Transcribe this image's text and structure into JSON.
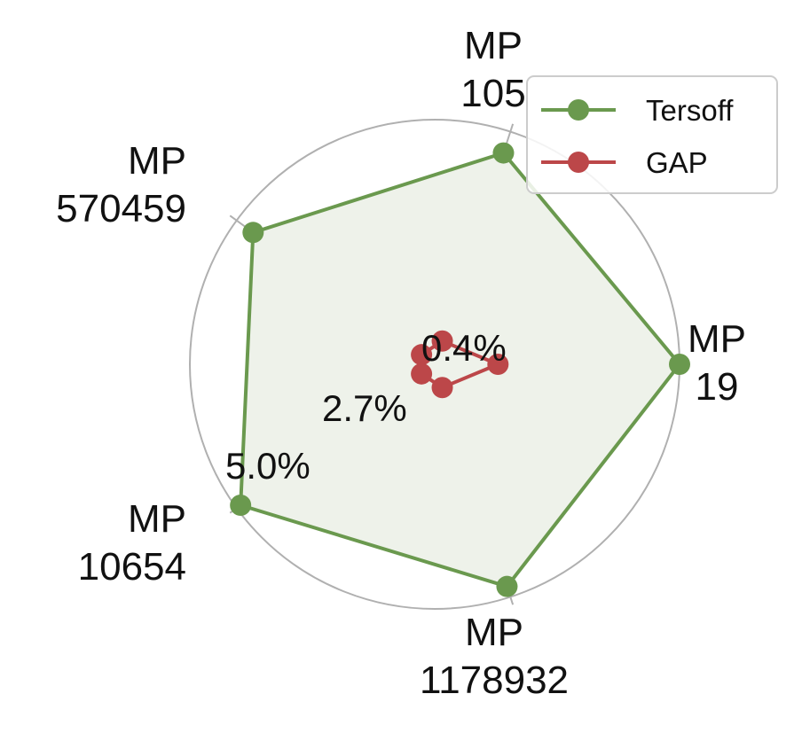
{
  "chart_data": {
    "type": "radar",
    "categories": [
      [
        "MP",
        "19"
      ],
      [
        "MP",
        "105"
      ],
      [
        "MP",
        "570459"
      ],
      [
        "MP",
        "10654"
      ],
      [
        "MP",
        "1178932"
      ]
    ],
    "radial_ticks": [
      {
        "value": 0.4,
        "label": "0.4%"
      },
      {
        "value": 2.7,
        "label": "2.7%"
      },
      {
        "value": 5.0,
        "label": "5.0%"
      }
    ],
    "rlim": [
      -1.0,
      5.0
    ],
    "grid": true,
    "legend": {
      "placement": "top-right"
    },
    "series": [
      {
        "name": "Tersoff",
        "color": "#6a994e",
        "fill": "#eef2ea",
        "values": [
          5.0,
          4.45,
          4.5,
          4.88,
          4.73
        ]
      },
      {
        "name": "GAP",
        "color": "#bc4749",
        "values": [
          0.55,
          -0.4,
          -0.6,
          -0.6,
          -0.4
        ]
      }
    ]
  }
}
